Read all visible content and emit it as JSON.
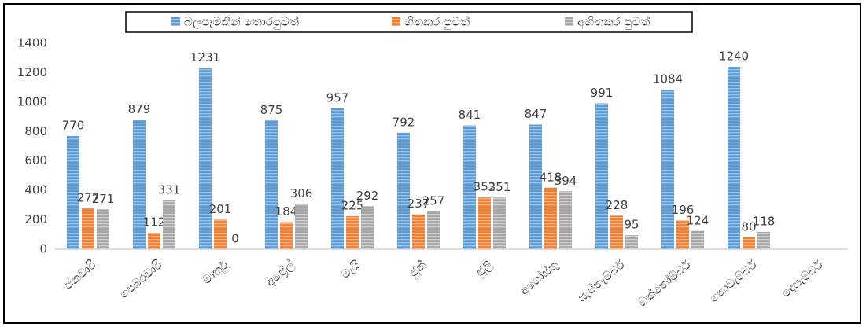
{
  "chart_data": {
    "type": "bar",
    "categories": [
      "ජනවාරි",
      "පෙබරවාරි",
      "මාර්තු",
      "අප්‍රේල්",
      "මැයි",
      "ජූනි",
      "ජූලි",
      "අගෝස්තු",
      "සැප්තැම්බර්",
      "ඔක්තෝම්බර්",
      "නොවැම්බර්",
      "දෙසැම්බර්"
    ],
    "series": [
      {
        "name": "බලපෑමකින් තොරපුවත්",
        "color": "#5b9bd5",
        "values": [
          770,
          879,
          1231,
          875,
          957,
          792,
          841,
          847,
          991,
          1084,
          1240,
          null
        ]
      },
      {
        "name": "හිතකර පුවත්",
        "color": "#ed7d31",
        "values": [
          277,
          112,
          201,
          184,
          225,
          237,
          352,
          418,
          228,
          196,
          80,
          null
        ]
      },
      {
        "name": "අහිතකර පුවත්",
        "color": "#a5a5a5",
        "values": [
          271,
          331,
          0,
          306,
          292,
          257,
          351,
          394,
          95,
          124,
          118,
          null
        ]
      }
    ],
    "ylim": [
      0,
      1400
    ],
    "yticks": [
      0,
      200,
      400,
      600,
      800,
      1000,
      1200,
      1400
    ],
    "legend": "top",
    "data_labels": true
  }
}
